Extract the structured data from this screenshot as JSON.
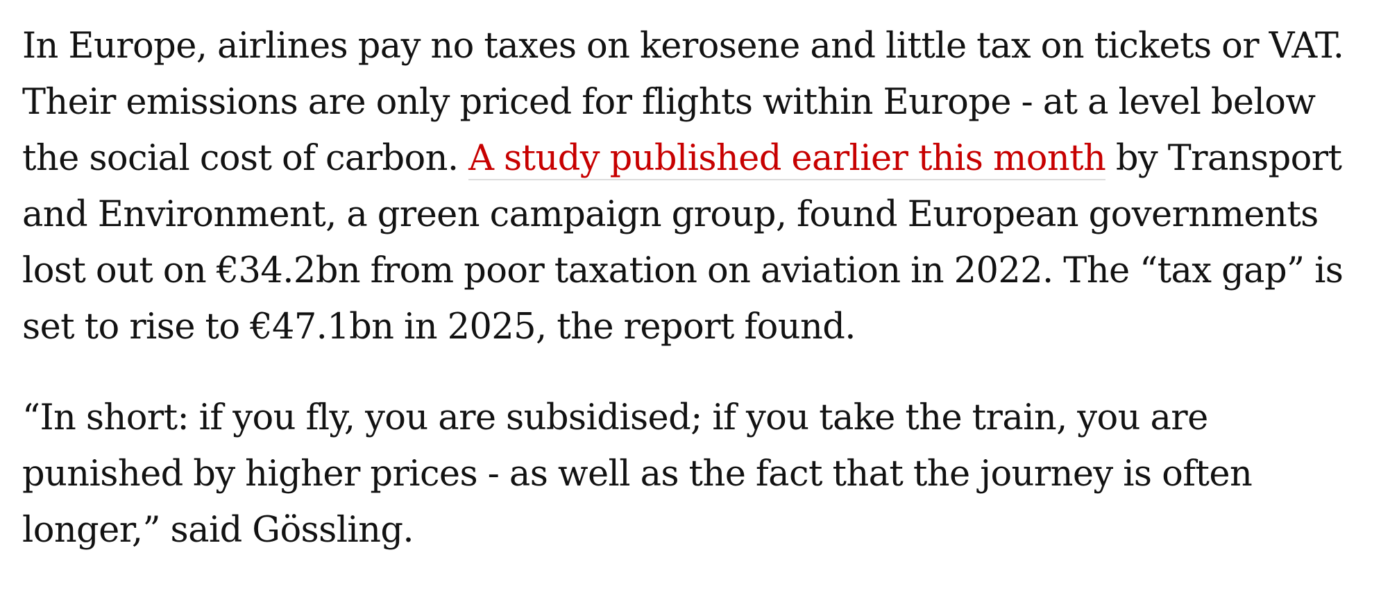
{
  "article": {
    "paragraph_1": {
      "line_1": "In Europe, airlines pay no taxes on kerosene and little tax on tickets or VAT.",
      "line_2": "Their emissions are only priced for flights within Europe - at a level below",
      "line_3_before": "the social cost of carbon.",
      "link_text": "A study published earlier this month",
      "line_3_after": "by Transport",
      "line_4": "and Environment, a green campaign group, found European governments",
      "line_5": "lost out on €34.2bn from poor taxation on aviation in 2022. The “tax gap” is",
      "line_6": "set to rise to €47.1bn in 2025, the report found."
    },
    "paragraph_2": {
      "line_1": "“In short: if you fly, you are subsidised; if you take the train, you are",
      "line_2": "punished by higher prices - as well as the fact that the journey is often",
      "line_3": "longer,” said Gössling."
    }
  },
  "colors": {
    "text": "#121212",
    "link": "#c70000",
    "link_underline": "#dcdcdc",
    "background": "#ffffff"
  }
}
